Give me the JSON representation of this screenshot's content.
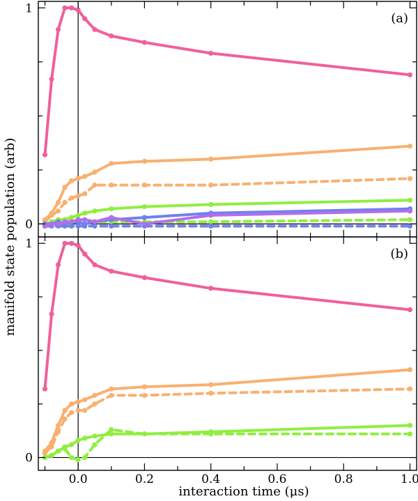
{
  "chart_data": [
    {
      "type": "line",
      "panel_label": "(a)",
      "xlabel": "interaction time (μs)",
      "ylabel": "manifold state population (arb)",
      "xlim": [
        -0.12,
        1.02
      ],
      "ylim": [
        -0.06,
        1.03
      ],
      "yticks": [
        0,
        1
      ],
      "ytick_labels": [
        "0",
        "1"
      ],
      "reference_lines": {
        "x": 0,
        "y": 0
      },
      "series": [
        {
          "name": "pink-solid",
          "color": "#f0609a",
          "dash": false,
          "x": [
            -0.1,
            -0.08,
            -0.06,
            -0.04,
            -0.02,
            0.0,
            0.02,
            0.05,
            0.1,
            0.2,
            0.4,
            1.0
          ],
          "y": [
            0.32,
            0.67,
            0.9,
            1.0,
            1.0,
            0.99,
            0.95,
            0.9,
            0.87,
            0.84,
            0.79,
            0.69
          ]
        },
        {
          "name": "orange-solid",
          "color": "#f8b070",
          "dash": false,
          "x": [
            -0.1,
            -0.08,
            -0.06,
            -0.04,
            -0.02,
            0.0,
            0.02,
            0.05,
            0.1,
            0.2,
            0.4,
            1.0
          ],
          "y": [
            0.02,
            0.05,
            0.1,
            0.17,
            0.2,
            0.21,
            0.22,
            0.24,
            0.28,
            0.29,
            0.3,
            0.36
          ]
        },
        {
          "name": "orange-dashed",
          "color": "#f8b070",
          "dash": true,
          "x": [
            -0.1,
            -0.08,
            -0.06,
            -0.04,
            -0.02,
            0.0,
            0.02,
            0.05,
            0.1,
            0.2,
            0.4,
            1.0
          ],
          "y": [
            0.01,
            0.04,
            0.06,
            0.1,
            0.12,
            0.13,
            0.14,
            0.18,
            0.18,
            0.18,
            0.18,
            0.21
          ]
        },
        {
          "name": "green-solid",
          "color": "#90ee40",
          "dash": false,
          "x": [
            -0.1,
            -0.08,
            -0.06,
            -0.04,
            -0.02,
            0.0,
            0.02,
            0.05,
            0.1,
            0.2,
            0.4,
            1.0
          ],
          "y": [
            0.0,
            0.01,
            0.02,
            0.02,
            0.03,
            0.04,
            0.05,
            0.06,
            0.07,
            0.08,
            0.09,
            0.11
          ]
        },
        {
          "name": "green-dashed",
          "color": "#90ee40",
          "dash": true,
          "x": [
            -0.1,
            -0.08,
            -0.06,
            -0.04,
            -0.02,
            0.0,
            0.02,
            0.05,
            0.1,
            0.2,
            0.4,
            1.0
          ],
          "y": [
            -0.01,
            0.0,
            0.0,
            0.0,
            -0.01,
            -0.01,
            0.0,
            0.01,
            0.01,
            0.01,
            0.01,
            0.02
          ]
        },
        {
          "name": "blue-solid",
          "color": "#7080ee",
          "dash": false,
          "x": [
            -0.1,
            -0.08,
            -0.06,
            -0.04,
            -0.02,
            0.0,
            0.02,
            0.05,
            0.1,
            0.2,
            0.4,
            1.0
          ],
          "y": [
            0.0,
            0.0,
            0.01,
            0.0,
            0.01,
            0.01,
            0.0,
            0.01,
            0.02,
            0.03,
            0.05,
            0.07
          ]
        },
        {
          "name": "blue-dashed",
          "color": "#7080ee",
          "dash": true,
          "x": [
            -0.1,
            -0.08,
            -0.06,
            -0.04,
            -0.02,
            0.0,
            0.02,
            0.05,
            0.1,
            0.2,
            0.4,
            1.0
          ],
          "y": [
            -0.01,
            -0.01,
            -0.01,
            -0.01,
            -0.01,
            -0.01,
            -0.01,
            -0.01,
            -0.01,
            -0.01,
            -0.01,
            -0.01
          ]
        },
        {
          "name": "purple-solid",
          "color": "#b070e8",
          "dash": false,
          "x": [
            -0.1,
            -0.08,
            -0.06,
            -0.04,
            -0.02,
            0.0,
            0.02,
            0.05,
            0.1,
            0.2,
            0.4,
            1.0
          ],
          "y": [
            -0.01,
            0.0,
            0.0,
            0.01,
            0.01,
            0.02,
            0.02,
            0.01,
            0.03,
            0.0,
            0.04,
            0.06
          ]
        }
      ]
    },
    {
      "type": "line",
      "panel_label": "(b)",
      "xlabel": "interaction time (μs)",
      "ylabel": "manifold state population (arb)",
      "xlim": [
        -0.12,
        1.02
      ],
      "ylim": [
        -0.06,
        1.03
      ],
      "yticks": [
        0,
        1
      ],
      "ytick_labels": [
        "0",
        "1"
      ],
      "xticks": [
        0.0,
        0.2,
        0.4,
        0.6,
        0.8,
        1.0
      ],
      "xtick_labels": [
        "0.0",
        "0.2",
        "0.4",
        "0.6",
        "0.8",
        "1.0"
      ],
      "reference_lines": {
        "x": 0,
        "y": 0
      },
      "series": [
        {
          "name": "pink-solid",
          "color": "#f0609a",
          "dash": false,
          "x": [
            -0.1,
            -0.08,
            -0.06,
            -0.04,
            -0.02,
            0.0,
            0.02,
            0.05,
            0.1,
            0.2,
            0.4,
            1.0
          ],
          "y": [
            0.32,
            0.67,
            0.9,
            1.0,
            1.0,
            0.99,
            0.95,
            0.9,
            0.87,
            0.84,
            0.79,
            0.69
          ]
        },
        {
          "name": "orange-solid",
          "color": "#f8b070",
          "dash": false,
          "x": [
            -0.1,
            -0.08,
            -0.06,
            -0.04,
            -0.02,
            0.0,
            0.02,
            0.05,
            0.1,
            0.2,
            0.4,
            1.0
          ],
          "y": [
            0.03,
            0.07,
            0.15,
            0.22,
            0.25,
            0.26,
            0.27,
            0.29,
            0.32,
            0.33,
            0.34,
            0.41
          ]
        },
        {
          "name": "orange-dashed",
          "color": "#f8b070",
          "dash": true,
          "x": [
            -0.1,
            -0.08,
            -0.06,
            -0.04,
            -0.02,
            0.0,
            0.02,
            0.05,
            0.1,
            0.2,
            0.4,
            1.0
          ],
          "y": [
            0.02,
            0.05,
            0.12,
            0.18,
            0.21,
            0.22,
            0.22,
            0.25,
            0.29,
            0.29,
            0.3,
            0.32
          ]
        },
        {
          "name": "green-solid",
          "color": "#90ee40",
          "dash": false,
          "x": [
            -0.1,
            -0.08,
            -0.06,
            -0.04,
            -0.02,
            0.0,
            0.02,
            0.05,
            0.1,
            0.2,
            0.4,
            1.0
          ],
          "y": [
            0.0,
            0.01,
            0.03,
            0.05,
            0.06,
            0.08,
            0.09,
            0.1,
            0.11,
            0.11,
            0.12,
            0.15
          ]
        },
        {
          "name": "green-dashed",
          "color": "#90ee40",
          "dash": true,
          "x": [
            -0.1,
            -0.08,
            -0.06,
            -0.04,
            -0.02,
            0.0,
            0.02,
            0.05,
            0.1,
            0.2,
            0.4,
            1.0
          ],
          "y": [
            0.0,
            0.01,
            0.03,
            0.04,
            0.0,
            -0.01,
            0.0,
            0.06,
            0.13,
            0.11,
            0.11,
            0.11
          ]
        }
      ]
    }
  ]
}
